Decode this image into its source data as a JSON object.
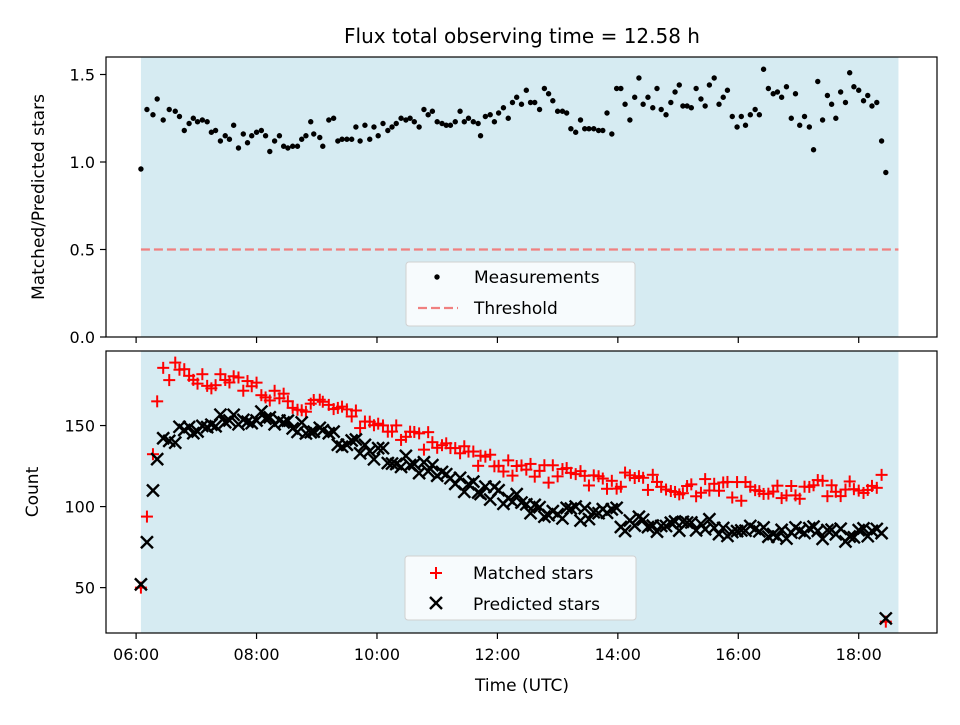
{
  "title": "Flux total observing time = 12.58 h",
  "colors": {
    "span": "#add8e6",
    "measurement": "#000000",
    "threshold": "#f08080",
    "matched": "#ff0000",
    "predicted": "#000000"
  },
  "chart_data": [
    {
      "type": "scatter",
      "panel": "top",
      "ylabel": "Matched/Predicted stars",
      "xlim": [
        5.5,
        19.3
      ],
      "ylim": [
        0,
        1.6
      ],
      "yticks": [
        "0.0",
        "0.5",
        "1.0",
        "1.5"
      ],
      "observing_span": [
        6.08,
        18.66
      ],
      "legend_position": "lower-center",
      "threshold": {
        "name": "Threshold",
        "value": 0.5,
        "style": "dashed"
      },
      "series": [
        {
          "name": "Measurements",
          "marker": "dot",
          "points": [
            [
              6.08,
              0.96
            ],
            [
              6.18,
              1.3
            ],
            [
              6.28,
              1.27
            ],
            [
              6.35,
              1.36
            ],
            [
              6.45,
              1.24
            ],
            [
              6.55,
              1.3
            ],
            [
              6.65,
              1.29
            ],
            [
              6.72,
              1.26
            ],
            [
              6.8,
              1.18
            ],
            [
              6.88,
              1.22
            ],
            [
              6.95,
              1.25
            ],
            [
              7.02,
              1.23
            ],
            [
              7.1,
              1.24
            ],
            [
              7.18,
              1.23
            ],
            [
              7.25,
              1.17
            ],
            [
              7.32,
              1.18
            ],
            [
              7.4,
              1.12
            ],
            [
              7.48,
              1.15
            ],
            [
              7.55,
              1.13
            ],
            [
              7.62,
              1.21
            ],
            [
              7.7,
              1.08
            ],
            [
              7.78,
              1.16
            ],
            [
              7.85,
              1.11
            ],
            [
              7.92,
              1.15
            ],
            [
              8.0,
              1.17
            ],
            [
              8.08,
              1.18
            ],
            [
              8.15,
              1.15
            ],
            [
              8.22,
              1.06
            ],
            [
              8.3,
              1.12
            ],
            [
              8.38,
              1.15
            ],
            [
              8.45,
              1.09
            ],
            [
              8.52,
              1.08
            ],
            [
              8.6,
              1.09
            ],
            [
              8.68,
              1.09
            ],
            [
              8.75,
              1.13
            ],
            [
              8.82,
              1.15
            ],
            [
              8.9,
              1.23
            ],
            [
              8.95,
              1.16
            ],
            [
              9.05,
              1.14
            ],
            [
              9.1,
              1.09
            ],
            [
              9.2,
              1.24
            ],
            [
              9.28,
              1.25
            ],
            [
              9.35,
              1.12
            ],
            [
              9.42,
              1.13
            ],
            [
              9.5,
              1.13
            ],
            [
              9.58,
              1.13
            ],
            [
              9.65,
              1.2
            ],
            [
              9.72,
              1.12
            ],
            [
              9.8,
              1.21
            ],
            [
              9.88,
              1.13
            ],
            [
              9.95,
              1.2
            ],
            [
              10.02,
              1.15
            ],
            [
              10.1,
              1.22
            ],
            [
              10.18,
              1.18
            ],
            [
              10.25,
              1.2
            ],
            [
              10.32,
              1.22
            ],
            [
              10.4,
              1.25
            ],
            [
              10.48,
              1.24
            ],
            [
              10.55,
              1.25
            ],
            [
              10.62,
              1.23
            ],
            [
              10.7,
              1.2
            ],
            [
              10.78,
              1.3
            ],
            [
              10.85,
              1.27
            ],
            [
              10.92,
              1.29
            ],
            [
              11.0,
              1.23
            ],
            [
              11.08,
              1.22
            ],
            [
              11.15,
              1.21
            ],
            [
              11.22,
              1.21
            ],
            [
              11.3,
              1.23
            ],
            [
              11.38,
              1.29
            ],
            [
              11.45,
              1.23
            ],
            [
              11.52,
              1.25
            ],
            [
              11.6,
              1.23
            ],
            [
              11.68,
              1.22
            ],
            [
              11.72,
              1.15
            ],
            [
              11.8,
              1.26
            ],
            [
              11.88,
              1.27
            ],
            [
              11.95,
              1.23
            ],
            [
              12.02,
              1.28
            ],
            [
              12.1,
              1.31
            ],
            [
              12.18,
              1.25
            ],
            [
              12.25,
              1.34
            ],
            [
              12.32,
              1.37
            ],
            [
              12.4,
              1.33
            ],
            [
              12.48,
              1.41
            ],
            [
              12.55,
              1.34
            ],
            [
              12.62,
              1.34
            ],
            [
              12.7,
              1.3
            ],
            [
              12.78,
              1.42
            ],
            [
              12.85,
              1.39
            ],
            [
              12.92,
              1.35
            ],
            [
              13.0,
              1.29
            ],
            [
              13.08,
              1.29
            ],
            [
              13.15,
              1.28
            ],
            [
              13.22,
              1.19
            ],
            [
              13.3,
              1.17
            ],
            [
              13.38,
              1.24
            ],
            [
              13.45,
              1.19
            ],
            [
              13.52,
              1.19
            ],
            [
              13.6,
              1.19
            ],
            [
              13.68,
              1.18
            ],
            [
              13.75,
              1.18
            ],
            [
              13.82,
              1.28
            ],
            [
              13.9,
              1.16
            ],
            [
              13.98,
              1.42
            ],
            [
              14.05,
              1.42
            ],
            [
              14.12,
              1.33
            ],
            [
              14.2,
              1.24
            ],
            [
              14.28,
              1.37
            ],
            [
              14.35,
              1.48
            ],
            [
              14.42,
              1.33
            ],
            [
              14.5,
              1.37
            ],
            [
              14.58,
              1.31
            ],
            [
              14.65,
              1.42
            ],
            [
              14.72,
              1.3
            ],
            [
              14.8,
              1.27
            ],
            [
              14.88,
              1.34
            ],
            [
              14.95,
              1.4
            ],
            [
              15.02,
              1.44
            ],
            [
              15.08,
              1.32
            ],
            [
              15.15,
              1.32
            ],
            [
              15.22,
              1.31
            ],
            [
              15.3,
              1.42
            ],
            [
              15.38,
              1.36
            ],
            [
              15.45,
              1.32
            ],
            [
              15.52,
              1.44
            ],
            [
              15.6,
              1.48
            ],
            [
              15.68,
              1.33
            ],
            [
              15.75,
              1.37
            ],
            [
              15.82,
              1.41
            ],
            [
              15.9,
              1.26
            ],
            [
              15.98,
              1.2
            ],
            [
              16.05,
              1.26
            ],
            [
              16.12,
              1.21
            ],
            [
              16.2,
              1.27
            ],
            [
              16.28,
              1.3
            ],
            [
              16.35,
              1.27
            ],
            [
              16.42,
              1.53
            ],
            [
              16.5,
              1.42
            ],
            [
              16.58,
              1.39
            ],
            [
              16.65,
              1.4
            ],
            [
              16.72,
              1.37
            ],
            [
              16.8,
              1.43
            ],
            [
              16.88,
              1.25
            ],
            [
              16.95,
              1.39
            ],
            [
              17.02,
              1.21
            ],
            [
              17.1,
              1.26
            ],
            [
              17.18,
              1.2
            ],
            [
              17.25,
              1.07
            ],
            [
              17.32,
              1.46
            ],
            [
              17.4,
              1.24
            ],
            [
              17.48,
              1.38
            ],
            [
              17.55,
              1.33
            ],
            [
              17.62,
              1.25
            ],
            [
              17.7,
              1.4
            ],
            [
              17.78,
              1.34
            ],
            [
              17.85,
              1.51
            ],
            [
              17.92,
              1.43
            ],
            [
              18.0,
              1.41
            ],
            [
              18.08,
              1.35
            ],
            [
              18.15,
              1.38
            ],
            [
              18.22,
              1.32
            ],
            [
              18.3,
              1.34
            ],
            [
              18.38,
              1.12
            ],
            [
              18.45,
              0.94
            ]
          ]
        }
      ]
    },
    {
      "type": "scatter",
      "panel": "bottom",
      "xlabel": "Time (UTC)",
      "ylabel": "Count",
      "xlim": [
        5.5,
        19.3
      ],
      "ylim": [
        22,
        196
      ],
      "yticks": [
        "50",
        "100",
        "150"
      ],
      "xticks": [
        "06:00",
        "08:00",
        "10:00",
        "12:00",
        "14:00",
        "16:00",
        "18:00"
      ],
      "observing_span": [
        6.08,
        18.66
      ],
      "legend_position": "lower-center",
      "series": [
        {
          "name": "Matched stars",
          "marker": "plus"
        },
        {
          "name": "Predicted stars",
          "marker": "x"
        }
      ]
    }
  ],
  "legends": {
    "top": [
      "Measurements",
      "Threshold"
    ],
    "bottom": [
      "Matched stars",
      "Predicted stars"
    ]
  }
}
